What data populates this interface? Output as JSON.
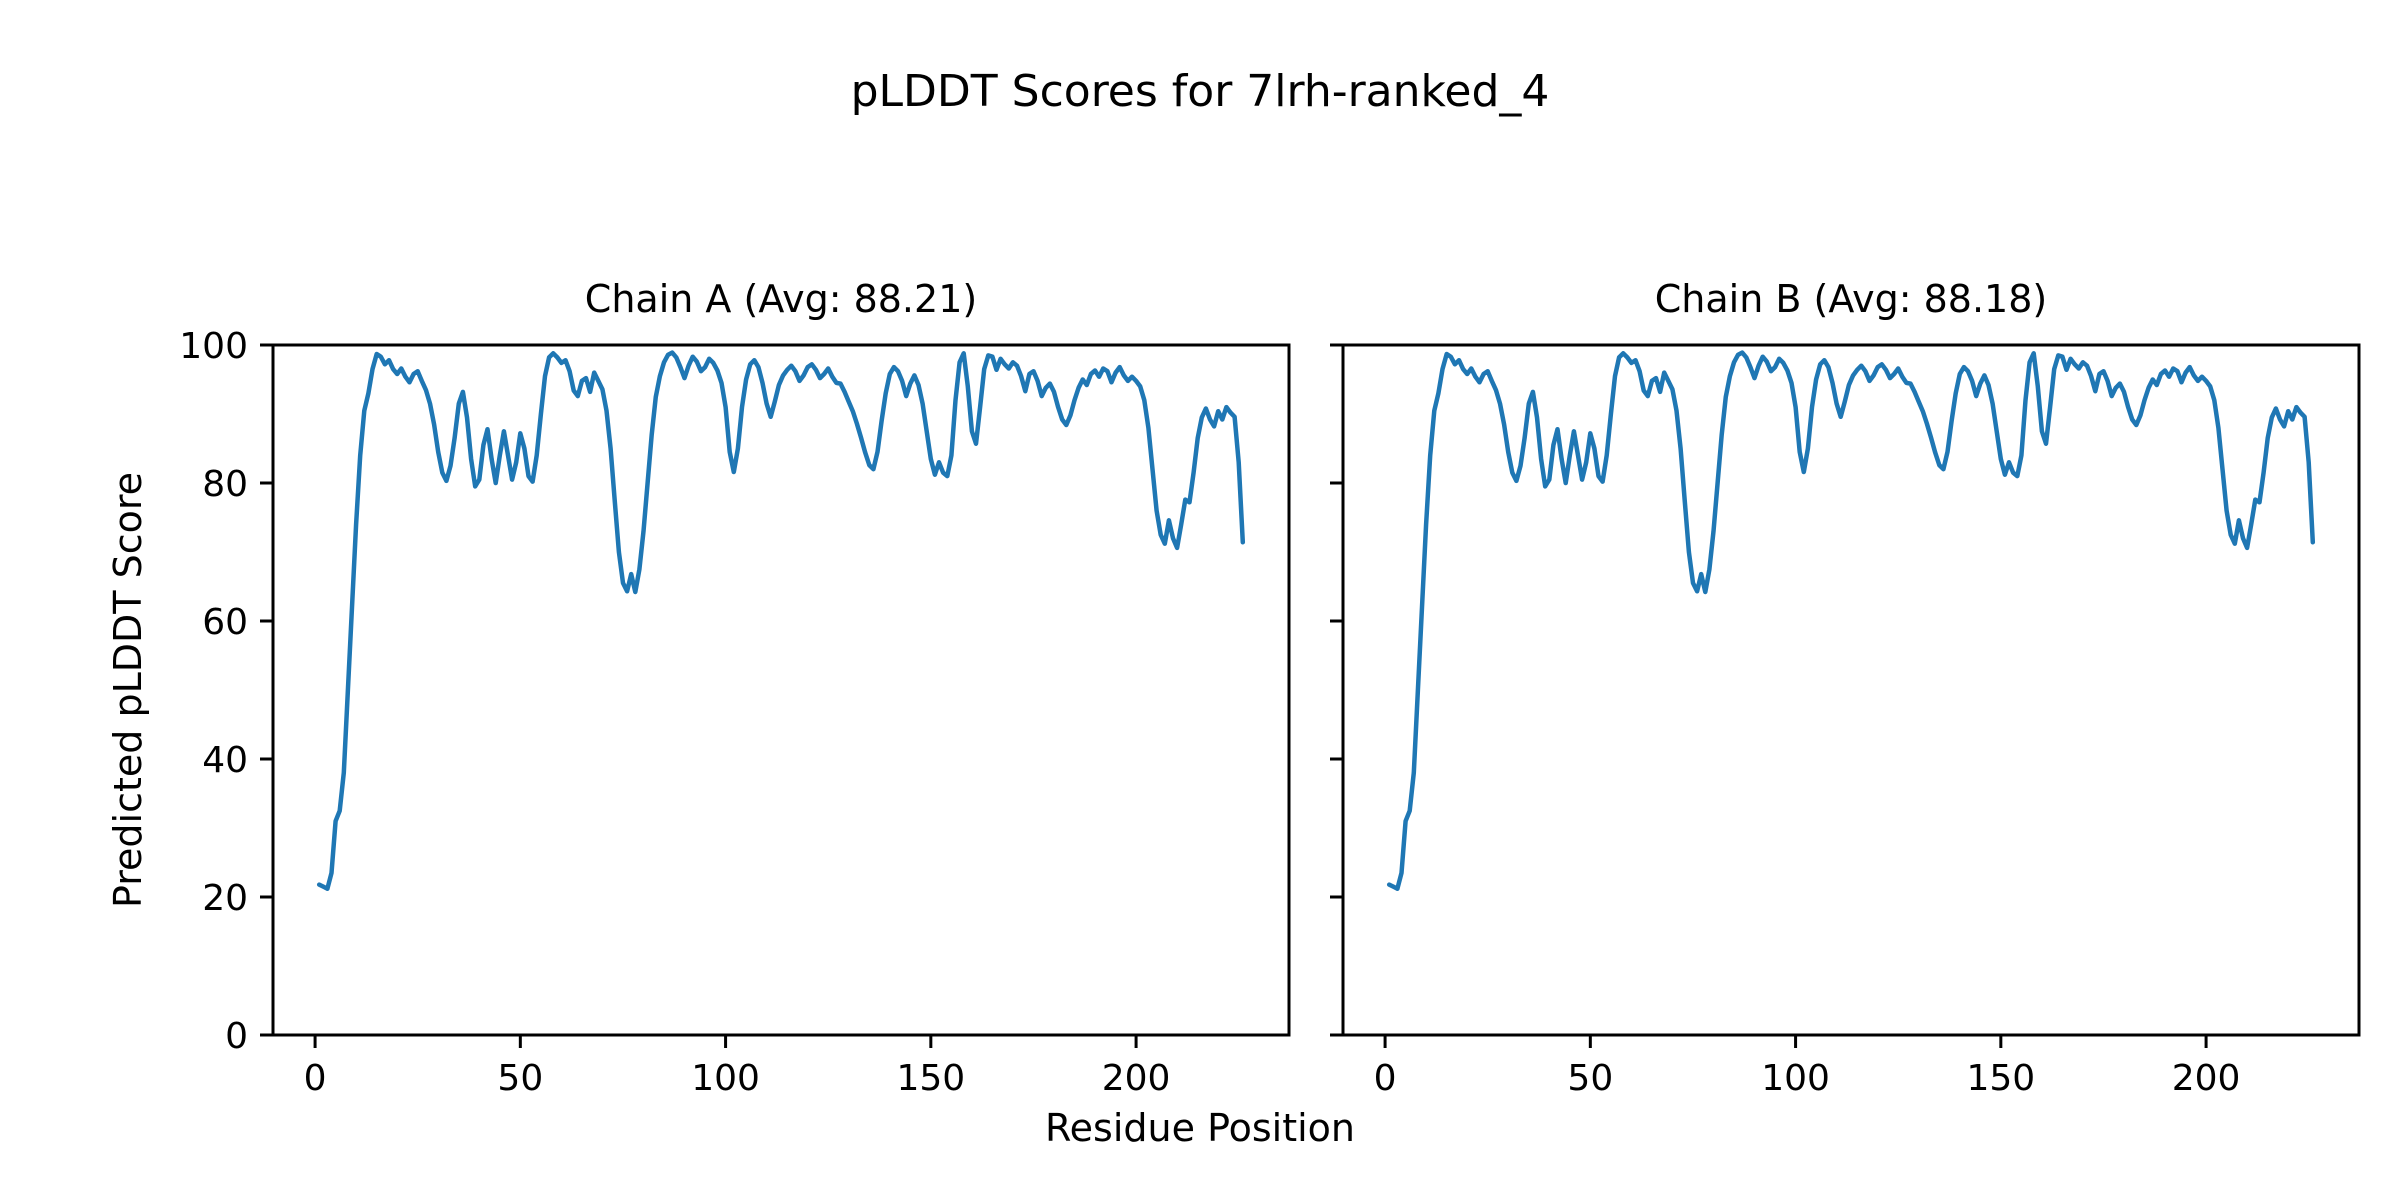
{
  "chart_data": {
    "type": "line",
    "suptitle": "pLDDT Scores for 7lrh-ranked_4",
    "xlabel": "Residue Position",
    "ylabel": "Predicted pLDDT Score",
    "line_color": "#1f77b4",
    "axis_color": "#000000",
    "background_color": "#ffffff",
    "grid": false,
    "legend_position": "none",
    "xlim": [
      -10.25,
      237.25
    ],
    "ylim": [
      0,
      100
    ],
    "xticks": [
      0,
      50,
      100,
      150,
      200
    ],
    "yticks": [
      0,
      20,
      40,
      60,
      80,
      100
    ],
    "x_start": 1,
    "n_residues": 226,
    "note": "Chain A and Chain B curves are visually identical",
    "subplots": [
      {
        "chain": "A",
        "title": "Chain A (Avg: 88.21)",
        "avg_plddt": 88.21,
        "y_tick_labels_visible": true
      },
      {
        "chain": "B",
        "title": "Chain B (Avg: 88.18)",
        "avg_plddt": 88.18,
        "y_tick_labels_visible": false
      }
    ],
    "plddt_values": [
      21.8,
      21.5,
      21.2,
      23.5,
      31.0,
      32.5,
      38.0,
      50.0,
      62.0,
      74.0,
      84.0,
      90.5,
      93.0,
      96.5,
      98.7,
      98.3,
      97.2,
      97.8,
      96.5,
      95.8,
      96.6,
      95.4,
      94.6,
      95.8,
      96.2,
      94.8,
      93.5,
      91.5,
      88.5,
      84.5,
      81.5,
      80.3,
      82.5,
      86.5,
      91.5,
      93.2,
      89.5,
      83.5,
      79.5,
      80.5,
      85.5,
      87.8,
      83.5,
      80.0,
      84.0,
      87.5,
      84.0,
      80.5,
      83.0,
      87.2,
      85.0,
      81.0,
      80.2,
      84.0,
      90.0,
      95.5,
      98.2,
      98.8,
      98.2,
      97.4,
      97.8,
      96.2,
      93.4,
      92.6,
      94.8,
      95.2,
      93.2,
      96.0,
      94.8,
      93.6,
      90.5,
      85.0,
      77.5,
      70.0,
      65.5,
      64.3,
      66.8,
      64.2,
      67.5,
      73.0,
      80.0,
      87.0,
      92.5,
      95.5,
      97.5,
      98.6,
      98.9,
      98.2,
      96.8,
      95.2,
      97.0,
      98.3,
      97.6,
      96.2,
      96.8,
      98.0,
      97.4,
      96.3,
      94.5,
      91.0,
      84.5,
      81.6,
      85.0,
      91.0,
      95.0,
      97.2,
      97.8,
      96.8,
      94.5,
      91.5,
      89.6,
      91.8,
      94.2,
      95.6,
      96.4,
      97.0,
      96.2,
      94.8,
      95.6,
      96.8,
      97.2,
      96.4,
      95.2,
      95.8,
      96.6,
      95.4,
      94.5,
      94.4,
      93.2,
      91.8,
      90.4,
      88.6,
      86.6,
      84.4,
      82.6,
      82.0,
      84.5,
      89.0,
      93.0,
      95.8,
      96.8,
      96.2,
      94.8,
      92.6,
      94.4,
      95.6,
      94.2,
      91.5,
      87.5,
      83.5,
      81.2,
      83.0,
      81.5,
      81.0,
      84.0,
      92.0,
      97.5,
      98.8,
      94.0,
      87.5,
      85.7,
      91.0,
      96.5,
      98.5,
      98.3,
      96.4,
      98.0,
      97.2,
      96.6,
      97.5,
      97.0,
      95.5,
      93.3,
      95.8,
      96.2,
      94.8,
      92.6,
      93.8,
      94.4,
      93.2,
      91.0,
      89.2,
      88.4,
      89.8,
      92.0,
      93.8,
      95.0,
      94.2,
      95.8,
      96.3,
      95.4,
      96.6,
      96.2,
      94.6,
      96.0,
      96.8,
      95.6,
      94.8,
      95.4,
      94.8,
      94.0,
      92.0,
      88.0,
      82.0,
      76.0,
      72.5,
      71.2,
      74.6,
      72.0,
      70.6,
      74.0,
      77.6,
      77.2,
      81.5,
      86.5,
      89.5,
      90.8,
      89.2,
      88.2,
      90.4,
      89.2,
      91.0,
      90.2,
      89.6,
      83.0,
      71.4
    ]
  }
}
